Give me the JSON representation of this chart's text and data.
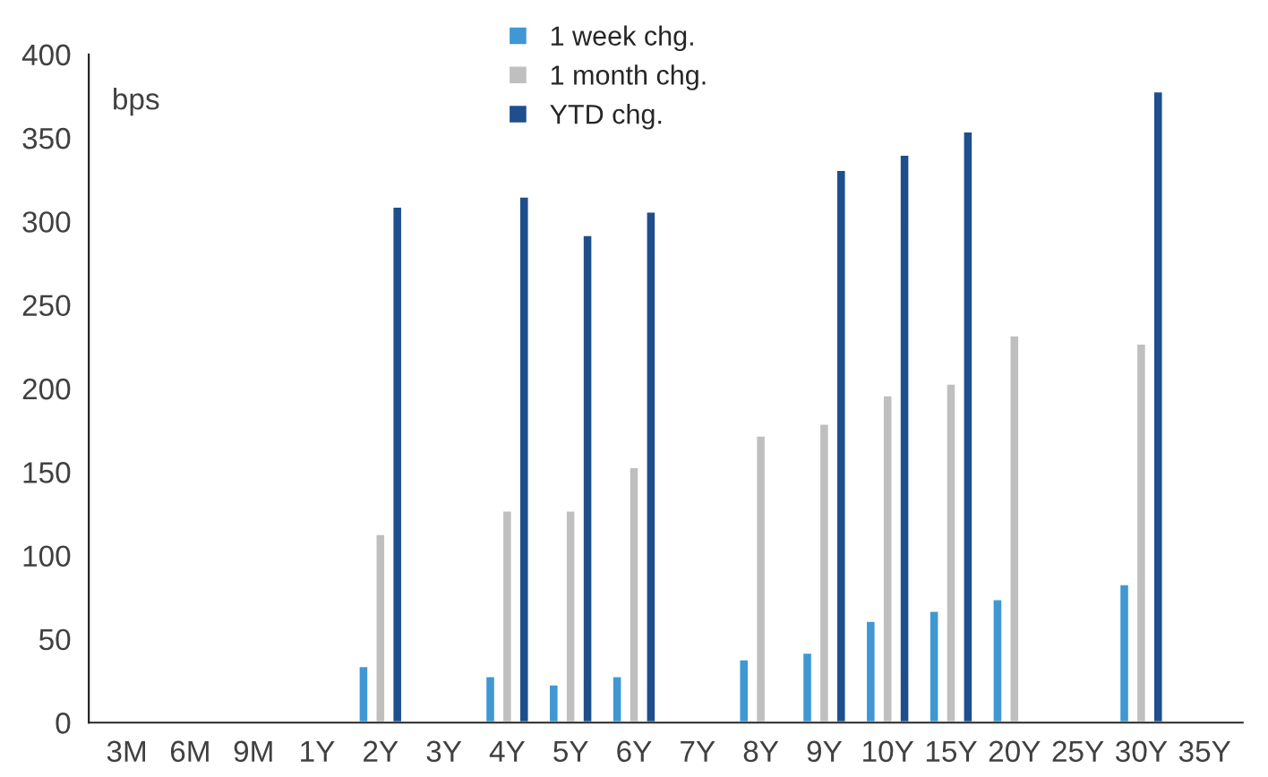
{
  "chart_data": {
    "type": "bar",
    "ylabel": "bps",
    "categories": [
      "3M",
      "6M",
      "9M",
      "1Y",
      "2Y",
      "3Y",
      "4Y",
      "5Y",
      "6Y",
      "7Y",
      "8Y",
      "9Y",
      "10Y",
      "15Y",
      "20Y",
      "25Y",
      "30Y",
      "35Y"
    ],
    "series": [
      {
        "name": "1 week chg.",
        "color": "#3f97d3",
        "values": [
          null,
          null,
          null,
          null,
          34,
          null,
          28,
          23,
          28,
          null,
          38,
          42,
          61,
          67,
          74,
          null,
          83,
          null
        ]
      },
      {
        "name": "1 month chg.",
        "color": "#bfbfbf",
        "values": [
          null,
          null,
          null,
          null,
          113,
          null,
          127,
          127,
          153,
          null,
          172,
          179,
          196,
          203,
          232,
          null,
          227,
          null
        ]
      },
      {
        "name": "YTD chg.",
        "color": "#1f4e8c",
        "values": [
          null,
          null,
          null,
          null,
          309,
          null,
          315,
          292,
          306,
          null,
          null,
          331,
          340,
          354,
          null,
          null,
          378,
          null
        ]
      }
    ],
    "ylim": [
      0,
      400
    ],
    "yticks": [
      0,
      50,
      100,
      150,
      200,
      250,
      300,
      350,
      400
    ],
    "grid": false,
    "legend": "top"
  }
}
